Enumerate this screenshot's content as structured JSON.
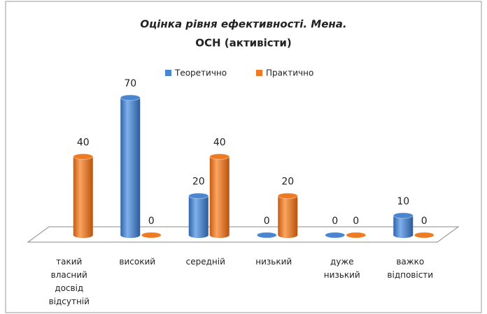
{
  "chart_data": {
    "type": "bar",
    "title": "Оцінка рівня ефективності. Мена.",
    "subtitle": "ОСН (активісти)",
    "categories": [
      "такий власний досвід відсутній",
      "високий",
      "середній",
      "низький",
      "дуже низький",
      "важко відповісти"
    ],
    "series": [
      {
        "name": "Теоретично",
        "color": "#4a86d0",
        "values": [
          null,
          70,
          20,
          0,
          0,
          10
        ]
      },
      {
        "name": "Практично",
        "color": "#ee7a22",
        "values": [
          40,
          0,
          40,
          20,
          0,
          0
        ]
      }
    ],
    "ylim": [
      0,
      70
    ],
    "legend": "top"
  }
}
